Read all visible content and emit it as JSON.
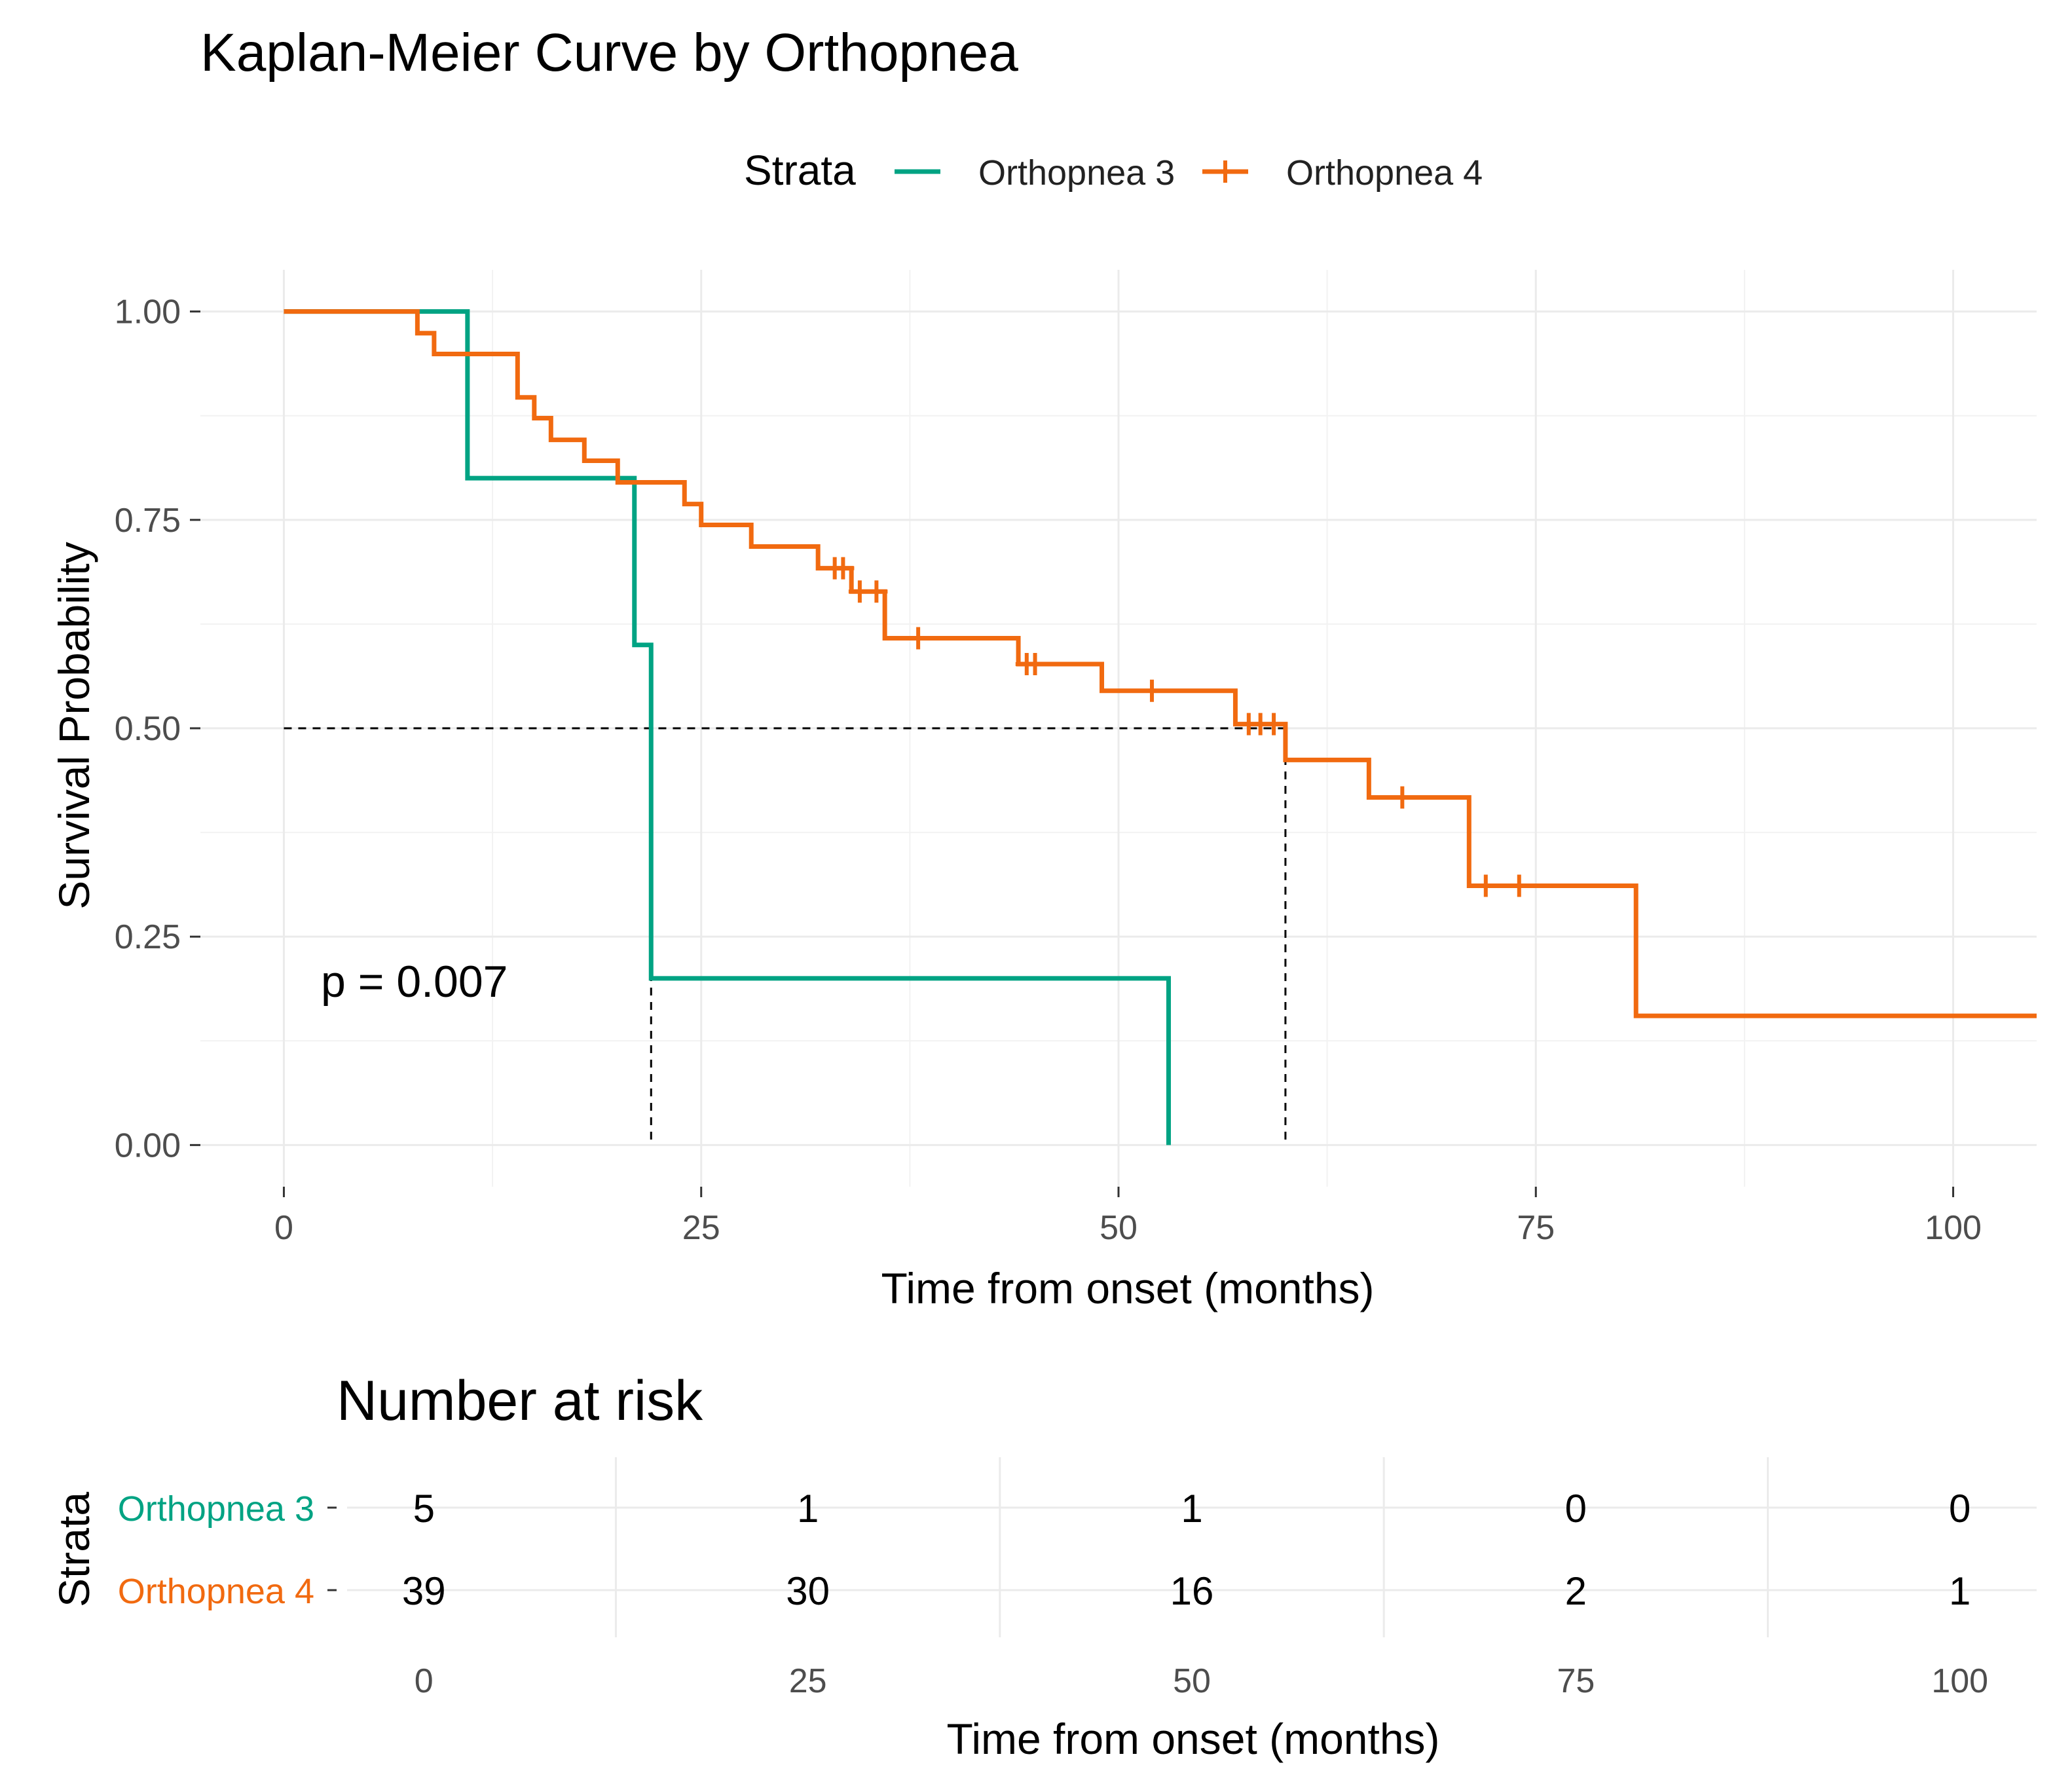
{
  "chart_data": {
    "type": "line",
    "title": "Kaplan-Meier Curve by Orthopnea",
    "xlabel": "Time from onset (months)",
    "ylabel": "Survival Probability",
    "xlim": [
      -5,
      105
    ],
    "ylim": [
      -0.05,
      1.05
    ],
    "x_ticks": [
      "0",
      "25",
      "50",
      "75",
      "100"
    ],
    "y_ticks": [
      "0.00",
      "0.25",
      "0.50",
      "0.75",
      "1.00"
    ],
    "grid": true,
    "legend": {
      "title": "Strata",
      "position": "top"
    },
    "annotation": "p = 0.007",
    "median_lines": [
      {
        "x": 22,
        "y": 0.5
      },
      {
        "x": 60,
        "y": 0.5
      }
    ],
    "series": [
      {
        "name": "Orthopnea 3",
        "color": "#00a383",
        "censor_mark": false,
        "steps": [
          [
            0,
            1.0
          ],
          [
            11,
            0.8
          ],
          [
            21,
            0.6
          ],
          [
            22,
            0.2
          ],
          [
            53,
            0.0
          ]
        ],
        "censors": []
      },
      {
        "name": "Orthopnea 4",
        "color": "#f16a10",
        "censor_mark": true,
        "steps": [
          [
            0,
            1.0
          ],
          [
            8,
            0.974
          ],
          [
            9,
            0.949
          ],
          [
            14,
            0.897
          ],
          [
            15,
            0.872
          ],
          [
            16,
            0.846
          ],
          [
            18,
            0.821
          ],
          [
            20,
            0.795
          ],
          [
            24,
            0.769
          ],
          [
            25,
            0.744
          ],
          [
            28,
            0.718
          ],
          [
            32,
            0.692
          ],
          [
            34,
            0.664
          ],
          [
            36,
            0.608
          ],
          [
            44,
            0.577
          ],
          [
            49,
            0.545
          ],
          [
            57,
            0.505
          ],
          [
            60,
            0.462
          ],
          [
            65,
            0.417
          ],
          [
            71,
            0.311
          ],
          [
            81,
            0.155
          ]
        ],
        "censors": [
          33,
          33.5,
          34.5,
          35.5,
          38,
          44.5,
          45,
          52,
          57.8,
          58.5,
          59.3,
          67,
          72,
          74
        ],
        "end_x": 105
      }
    ]
  },
  "risk_table": {
    "title": "Number at risk",
    "ylabel": "Strata",
    "xlabel": "Time from onset (months)",
    "x_ticks": [
      "0",
      "25",
      "50",
      "75",
      "100"
    ],
    "rows": [
      {
        "name": "Orthopnea 3",
        "color": "#00a383",
        "values": [
          "5",
          "1",
          "1",
          "0",
          "0"
        ]
      },
      {
        "name": "Orthopnea 4",
        "color": "#f16a10",
        "values": [
          "39",
          "30",
          "16",
          "2",
          "1"
        ]
      }
    ]
  }
}
